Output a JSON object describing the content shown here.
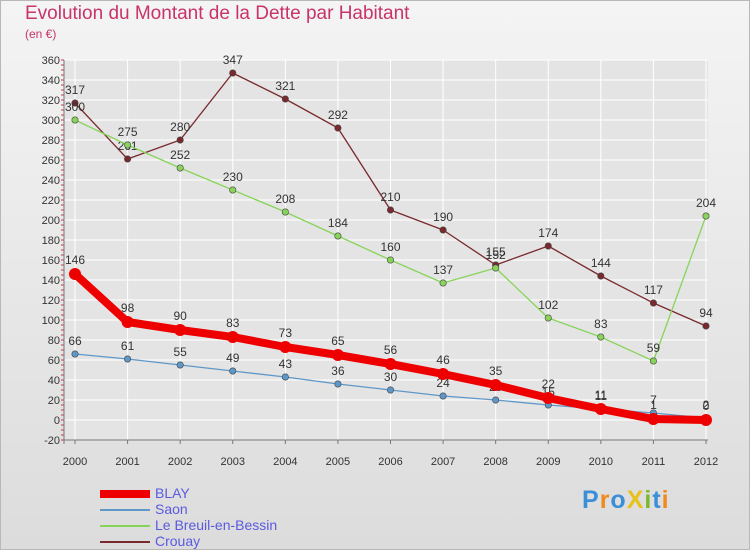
{
  "title": "Evolution du Montant de la Dette par Habitant",
  "subtitle": "(en €)",
  "logo": {
    "text": "ProXiti",
    "colors": [
      "#3a8fd8",
      "#f08a1e",
      "#3a8fd8",
      "#e8c21a",
      "#7ab830",
      "#3a8fd8",
      "#f08a1e"
    ]
  },
  "colors": {
    "title": "#c8336a",
    "axis": "#555555",
    "grid": "#ffffff",
    "legend_text": "#5a5ae0"
  },
  "chart_data": {
    "type": "line",
    "title": "Evolution du Montant de la Dette par Habitant",
    "ylabel": "(en €)",
    "xlabel": "",
    "x": [
      "2000",
      "2001",
      "2002",
      "2003",
      "2004",
      "2005",
      "2006",
      "2007",
      "2008",
      "2009",
      "2010",
      "2011",
      "2012"
    ],
    "ylim": [
      -20,
      360
    ],
    "yticks": [
      "-20",
      "0",
      "20",
      "40",
      "60",
      "80",
      "100",
      "120",
      "140",
      "160",
      "180",
      "200",
      "220",
      "240",
      "260",
      "280",
      "300",
      "320",
      "340",
      "360"
    ],
    "grid": true,
    "legend_position": "bottom-left",
    "series": [
      {
        "name": "Crouay",
        "color": "#7a2a2e",
        "values": [
          317,
          261,
          280,
          347,
          321,
          292,
          210,
          190,
          155,
          174,
          144,
          117,
          94
        ],
        "labels": [
          "317",
          "261",
          "280",
          "347",
          "321",
          "292",
          "210",
          "190",
          "155",
          "174",
          "144",
          "117",
          "94"
        ]
      },
      {
        "name": "Le Breuil-en-Bessin",
        "color": "#88d45a",
        "values": [
          300,
          275,
          252,
          230,
          208,
          184,
          160,
          137,
          152,
          102,
          83,
          59,
          204
        ],
        "labels": [
          "300",
          "275",
          "252",
          "230",
          "208",
          "184",
          "160",
          "137",
          "152",
          "102",
          "83",
          "59",
          "204"
        ]
      },
      {
        "name": "Saon",
        "color": "#5f98c8",
        "values": [
          66,
          61,
          55,
          49,
          43,
          36,
          30,
          24,
          20,
          15,
          11,
          7,
          2
        ],
        "labels": [
          "66",
          "61",
          "55",
          "49",
          "43",
          "36",
          "30",
          "24",
          "20",
          "15",
          "11",
          "7",
          "2"
        ]
      },
      {
        "name": "BLAY",
        "color": "#ee0000",
        "values": [
          146,
          98,
          90,
          83,
          73,
          65,
          56,
          46,
          35,
          22,
          11,
          1,
          0
        ],
        "labels": [
          "146",
          "98",
          "90",
          "83",
          "73",
          "65",
          "56",
          "46",
          "35",
          "22",
          "11",
          "1",
          "0"
        ]
      }
    ]
  },
  "legend": [
    {
      "name": "BLAY",
      "color": "#ee0000"
    },
    {
      "name": "Saon",
      "color": "#5f98c8"
    },
    {
      "name": "Le Breuil-en-Bessin",
      "color": "#88d45a"
    },
    {
      "name": "Crouay",
      "color": "#7a2a2e"
    }
  ]
}
